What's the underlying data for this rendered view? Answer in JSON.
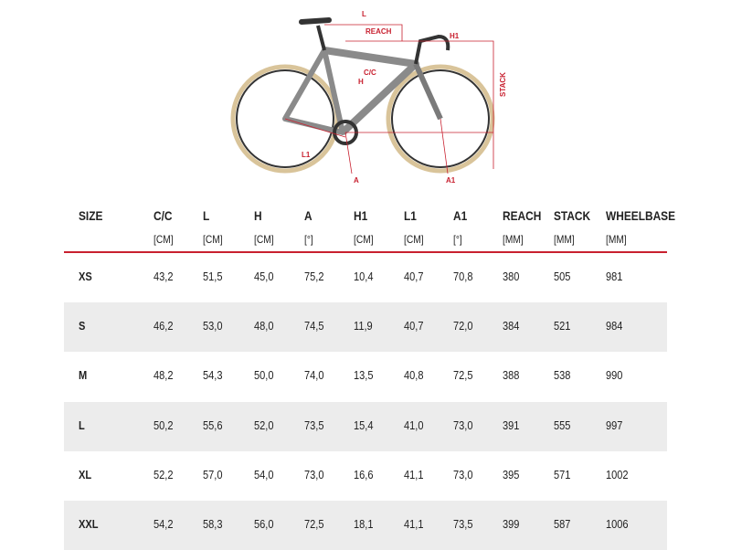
{
  "diagram": {
    "labels": {
      "l": "L",
      "reach": "REACH",
      "h1": "H1",
      "cc": "C/C",
      "h": "H",
      "stack": "STACK",
      "a": "A",
      "a1": "A1",
      "l1": "L1"
    }
  },
  "table": {
    "headers": [
      {
        "name": "SIZE"
      },
      {
        "name": "C/C",
        "unit": "[CM]"
      },
      {
        "name": "L",
        "unit": "[CM]"
      },
      {
        "name": "H",
        "unit": "[CM]"
      },
      {
        "name": "A",
        "unit": "[°]"
      },
      {
        "name": "H1",
        "unit": "[CM]"
      },
      {
        "name": "L1",
        "unit": "[CM]"
      },
      {
        "name": "A1",
        "unit": "[°]"
      },
      {
        "name": "REACH",
        "unit": "[MM]"
      },
      {
        "name": "STACK",
        "unit": "[MM]"
      },
      {
        "name": "WHEELBASE",
        "unit": "[MM]"
      }
    ],
    "rows": [
      [
        "XS",
        "43,2",
        "51,5",
        "45,0",
        "75,2",
        "10,4",
        "40,7",
        "70,8",
        "380",
        "505",
        "981"
      ],
      [
        "S",
        "46,2",
        "53,0",
        "48,0",
        "74,5",
        "11,9",
        "40,7",
        "72,0",
        "384",
        "521",
        "984"
      ],
      [
        "M",
        "48,2",
        "54,3",
        "50,0",
        "74,0",
        "13,5",
        "40,8",
        "72,5",
        "388",
        "538",
        "990"
      ],
      [
        "L",
        "50,2",
        "55,6",
        "52,0",
        "73,5",
        "15,4",
        "41,0",
        "73,0",
        "391",
        "555",
        "997"
      ],
      [
        "XL",
        "52,2",
        "57,0",
        "54,0",
        "73,0",
        "16,6",
        "41,1",
        "73,0",
        "395",
        "571",
        "1002"
      ],
      [
        "XXL",
        "54,2",
        "58,3",
        "56,0",
        "72,5",
        "18,1",
        "41,1",
        "73,5",
        "399",
        "587",
        "1006"
      ]
    ]
  }
}
